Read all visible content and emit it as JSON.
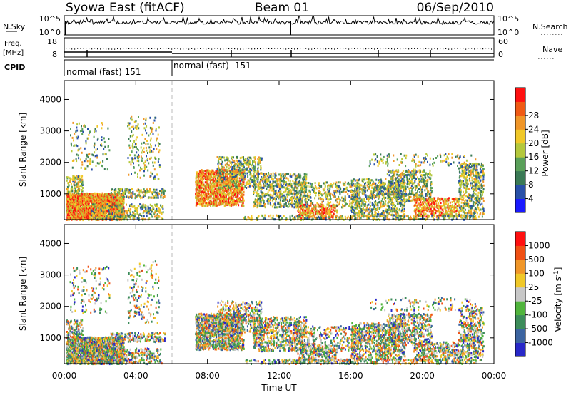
{
  "header": {
    "title": "Syowa East (fitACF)",
    "beam": "Beam 01",
    "date": "06/Sep/2010"
  },
  "top_panels": {
    "nsky_label": "N.Sky",
    "nsearch_label": "N.Search",
    "nsky_ticks": [
      "10^5",
      "10^0"
    ],
    "nsearch_ticks": [
      "10^5",
      "10^0"
    ],
    "freq_label": "Freq.",
    "freq_unit": "[MHz]",
    "freq_ticks": [
      "18",
      "8"
    ],
    "nave_label": "Nave",
    "nave_ticks": [
      "60",
      "0"
    ],
    "cpid_label": "CPID",
    "cpid_segments": [
      "normal (fast) 151",
      "normal (fast) -151"
    ]
  },
  "chart_data": [
    {
      "type": "heatmap",
      "name": "power",
      "ylabel": "Slant Range [km]",
      "yticks": [
        "1000",
        "2000",
        "3000",
        "4000"
      ],
      "ylim": [
        180,
        4600
      ],
      "xlabel": "",
      "xticks": [
        "00:00",
        "04:00",
        "08:00",
        "12:00",
        "16:00",
        "20:00",
        "00:00"
      ],
      "colorbar_label": "Power [dB]",
      "colorbar_ticks": [
        "4",
        "8",
        "12",
        "16",
        "20",
        "24",
        "28"
      ],
      "colorbar_colors": [
        "#1a1aff",
        "#2850a8",
        "#3a7a55",
        "#5aa05a",
        "#b4c83c",
        "#f0c828",
        "#f09628",
        "#f05a14",
        "#ff1010"
      ]
    },
    {
      "type": "heatmap",
      "name": "velocity",
      "ylabel": "Slant Range [km]",
      "yticks": [
        "1000",
        "2000",
        "3000",
        "4000"
      ],
      "ylim": [
        180,
        4600
      ],
      "xlabel": "Time UT",
      "xticks": [
        "00:00",
        "04:00",
        "08:00",
        "12:00",
        "16:00",
        "20:00",
        "00:00"
      ],
      "colorbar_label": "Velocity [m s^-1]",
      "colorbar_ticks": [
        "1000",
        "500",
        "100",
        "25",
        "-25",
        "-100",
        "-500",
        "-1000"
      ],
      "colorbar_colors": [
        "#2828c8",
        "#3c64a0",
        "#3c8c5a",
        "#50b43c",
        "#c8c8c8",
        "#f0c828",
        "#f09628",
        "#f05014",
        "#ff1010"
      ]
    }
  ]
}
